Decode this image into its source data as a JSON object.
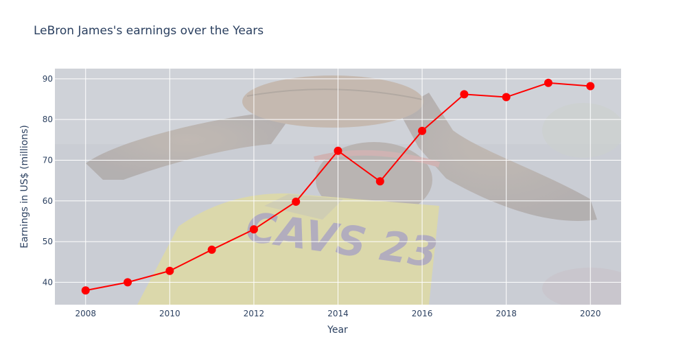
{
  "chart_data": {
    "type": "line",
    "title": "LeBron James's earnings over the Years",
    "xlabel": "Year",
    "ylabel": "Earnings in US$ (millions)",
    "x": [
      2008,
      2009,
      2010,
      2011,
      2012,
      2013,
      2014,
      2015,
      2016,
      2017,
      2018,
      2019,
      2020
    ],
    "series": [
      {
        "values": [
          38,
          40,
          42.8,
          48,
          53,
          59.8,
          72.3,
          64.8,
          77.2,
          86.2,
          85.5,
          89,
          88.2
        ],
        "color": "#ff0000"
      }
    ],
    "xticks": [
      "2008",
      "2010",
      "2012",
      "2014",
      "2016",
      "2018",
      "2020"
    ],
    "yticks": [
      "40",
      "50",
      "60",
      "70",
      "80",
      "90"
    ],
    "xlim": [
      2007.27,
      2020.73
    ],
    "ylim": [
      34.5,
      92.5
    ],
    "grid": true,
    "legend": "none",
    "background": "photo of a basketball player in a yellow jersey holding a ball overhead (faded)",
    "background_jersey_text": "CAVS 23"
  }
}
